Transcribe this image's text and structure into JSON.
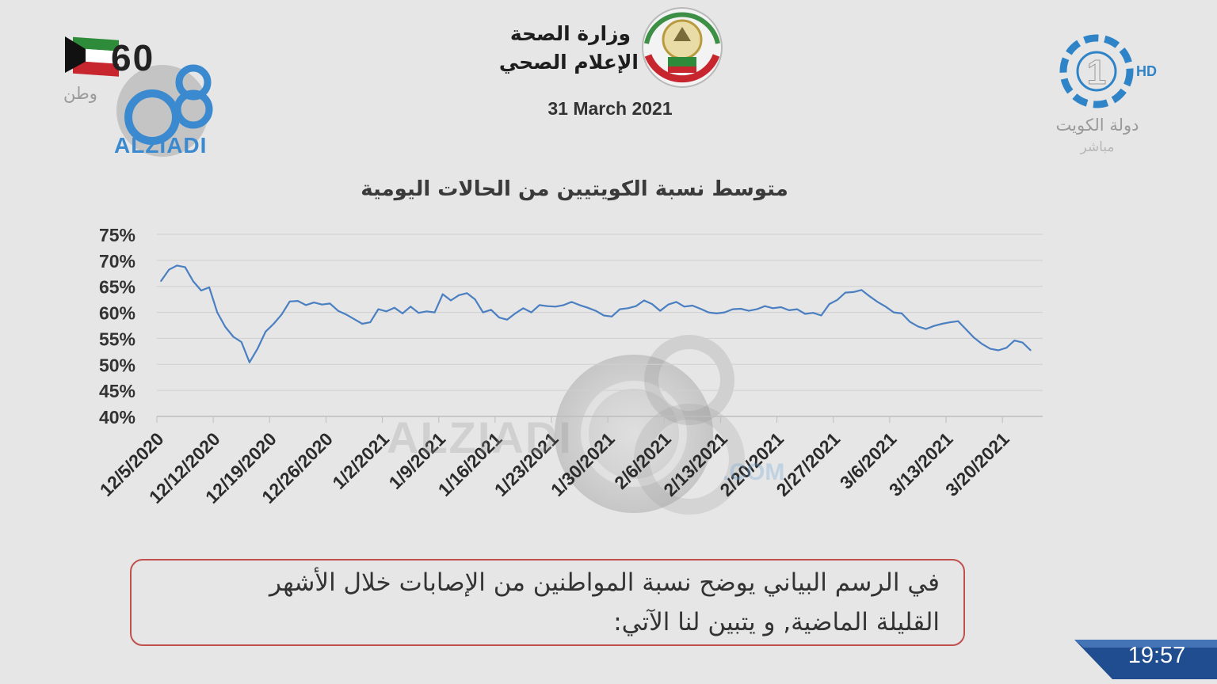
{
  "header": {
    "ministry": "وزارة الصحة",
    "department": "الإعلام الصحي",
    "date": "31 March 2021"
  },
  "channel": {
    "logo_number": "1",
    "hd": "HD",
    "name": "دولة الكويت",
    "live": "مباشر"
  },
  "anniversary": {
    "number": "60",
    "slogan": "وطن"
  },
  "brand": {
    "name": "ALZIADI",
    "watermark": "ALZIADI",
    "watermark_suffix": ".COM"
  },
  "colors": {
    "line": "#4a7fc1",
    "grid": "#cfcfcf",
    "caption_border": "#c0504d",
    "kuwait_green": "#2e8b3a",
    "kuwait_red": "#c8262e",
    "channel_blue": "#2f84c8"
  },
  "icons": [
    "kuwait-flag-icon",
    "ministry-emblem-icon",
    "channel-logo-icon",
    "q8-logo-icon"
  ],
  "caption": {
    "line1": "في الرسم البياني يوضح نسبة المواطنين من الإصابات خلال الأشهر",
    "line2": "القليلة الماضية, و يتبين لنا الآتي:"
  },
  "clock": "19:57",
  "chart_data": {
    "type": "line",
    "title": "متوسط نسبة الكويتيين من الحالات اليومية",
    "xlabel": "",
    "ylabel": "",
    "ylim": [
      40,
      75
    ],
    "yticks": [
      40,
      45,
      50,
      55,
      60,
      65,
      70,
      75
    ],
    "ytick_labels": [
      "40%",
      "45%",
      "50%",
      "55%",
      "60%",
      "65%",
      "70%",
      "75%"
    ],
    "x_tick_labels": [
      "12/5/2020",
      "12/12/2020",
      "12/19/2020",
      "12/26/2020",
      "1/2/2021",
      "1/9/2021",
      "1/16/2021",
      "1/23/2021",
      "1/30/2021",
      "2/6/2021",
      "2/13/2021",
      "2/20/2021",
      "2/27/2021",
      "3/6/2021",
      "3/13/2021",
      "3/20/2021"
    ],
    "x_start": "12/5/2020",
    "x_end": "3/24/2021",
    "grid": true,
    "legend": "none",
    "series": [
      {
        "values": [
          66.0,
          68.2,
          69.0,
          68.7,
          66.0,
          64.2,
          64.8,
          60.0,
          57.2,
          55.3,
          54.3,
          50.4,
          53.0,
          56.3,
          57.8,
          59.6,
          62.1,
          62.2,
          61.4,
          61.9,
          61.5,
          61.7,
          60.3,
          59.6,
          58.7,
          57.8,
          58.1,
          60.6,
          60.2,
          60.9,
          59.8,
          61.1,
          59.9,
          60.2,
          60.0,
          63.5,
          62.3,
          63.3,
          63.7,
          62.5,
          60.0,
          60.5,
          59.0,
          58.6,
          59.8,
          60.8,
          60.0,
          61.4,
          61.2,
          61.1,
          61.4,
          62.0,
          61.4,
          60.9,
          60.3,
          59.4,
          59.2,
          60.6,
          60.8,
          61.2,
          62.3,
          61.6,
          60.3,
          61.5,
          62.0,
          61.1,
          61.3,
          60.7,
          60.0,
          59.8,
          60.0,
          60.6,
          60.7,
          60.3,
          60.6,
          61.2,
          60.8,
          61.0,
          60.4,
          60.6,
          59.7,
          59.9,
          59.4,
          61.6,
          62.4,
          63.8,
          63.9,
          64.3,
          63.1,
          62.0,
          61.1,
          60.0,
          59.8,
          58.2,
          57.3,
          56.8,
          57.4,
          57.8,
          58.1,
          58.3,
          56.7,
          55.1,
          53.9,
          53.0,
          52.7,
          53.2,
          54.6,
          54.2,
          52.7
        ]
      }
    ]
  }
}
